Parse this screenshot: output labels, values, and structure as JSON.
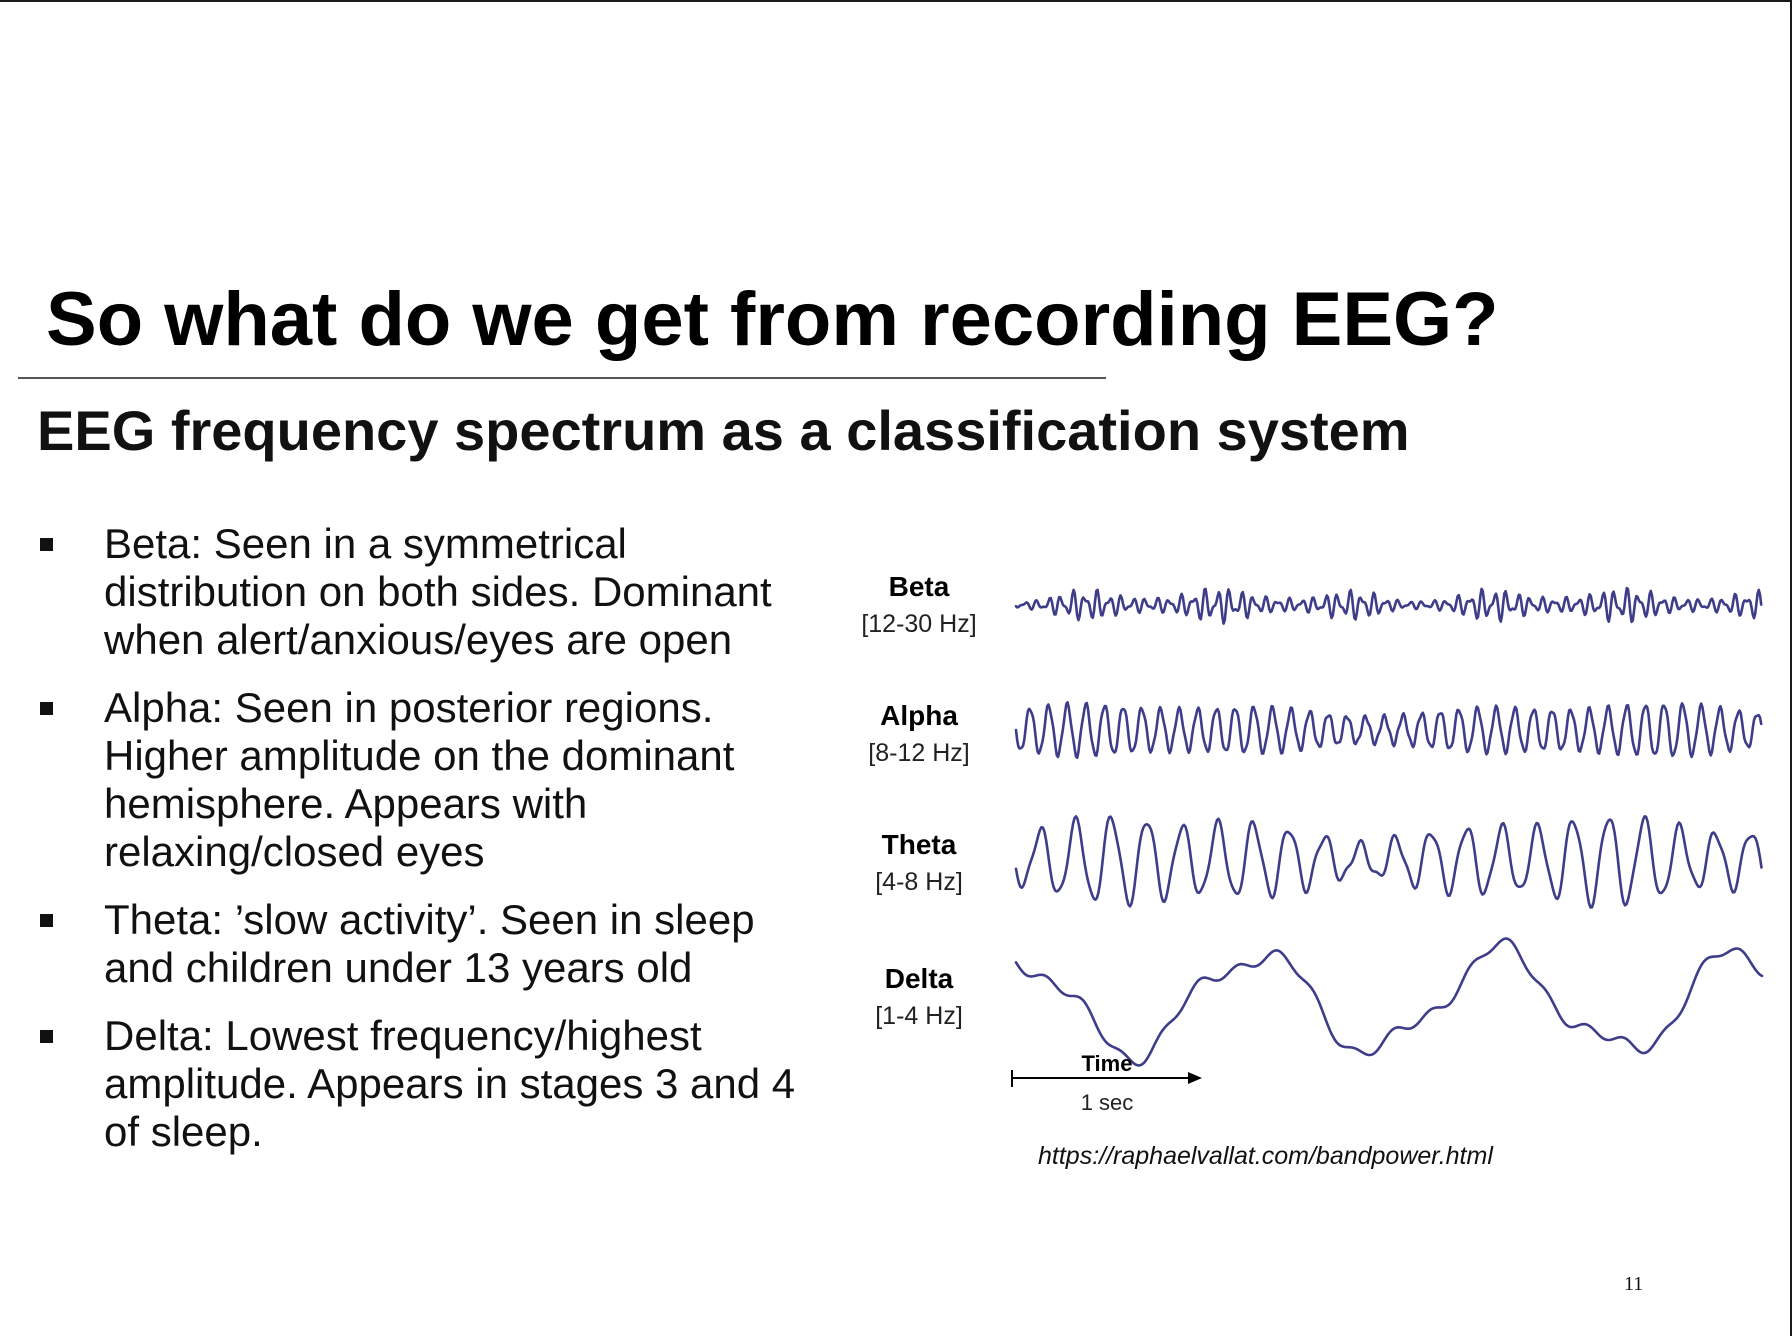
{
  "slide": {
    "title": "So what do we get from recording EEG?",
    "subtitle": "EEG frequency spectrum as a classification system",
    "bullets": [
      "Beta: Seen in a symmetrical distribution on both sides. Dominant when alert/anxious/eyes are open",
      "Alpha: Seen in posterior regions. Higher amplitude on the dominant hemisphere. Appears with relaxing/closed eyes",
      "Theta: ’slow activity’. Seen in sleep and children under 13 years old",
      "Delta: Lowest frequency/highest amplitude. Appears in stages 3 and 4 of sleep."
    ],
    "figure": {
      "bands": [
        {
          "name": "Beta",
          "range": "[12-30 Hz]"
        },
        {
          "name": "Alpha",
          "range": "[8-12 Hz]"
        },
        {
          "name": "Theta",
          "range": "[4-8 Hz]"
        },
        {
          "name": "Delta",
          "range": "[1-4 Hz]"
        }
      ],
      "time_label": "Time",
      "time_value": "1 sec",
      "wave_color": "#3d3d8a"
    },
    "source_url": "https://raphaelvallat.com/bandpower.html",
    "page_number": "11"
  }
}
